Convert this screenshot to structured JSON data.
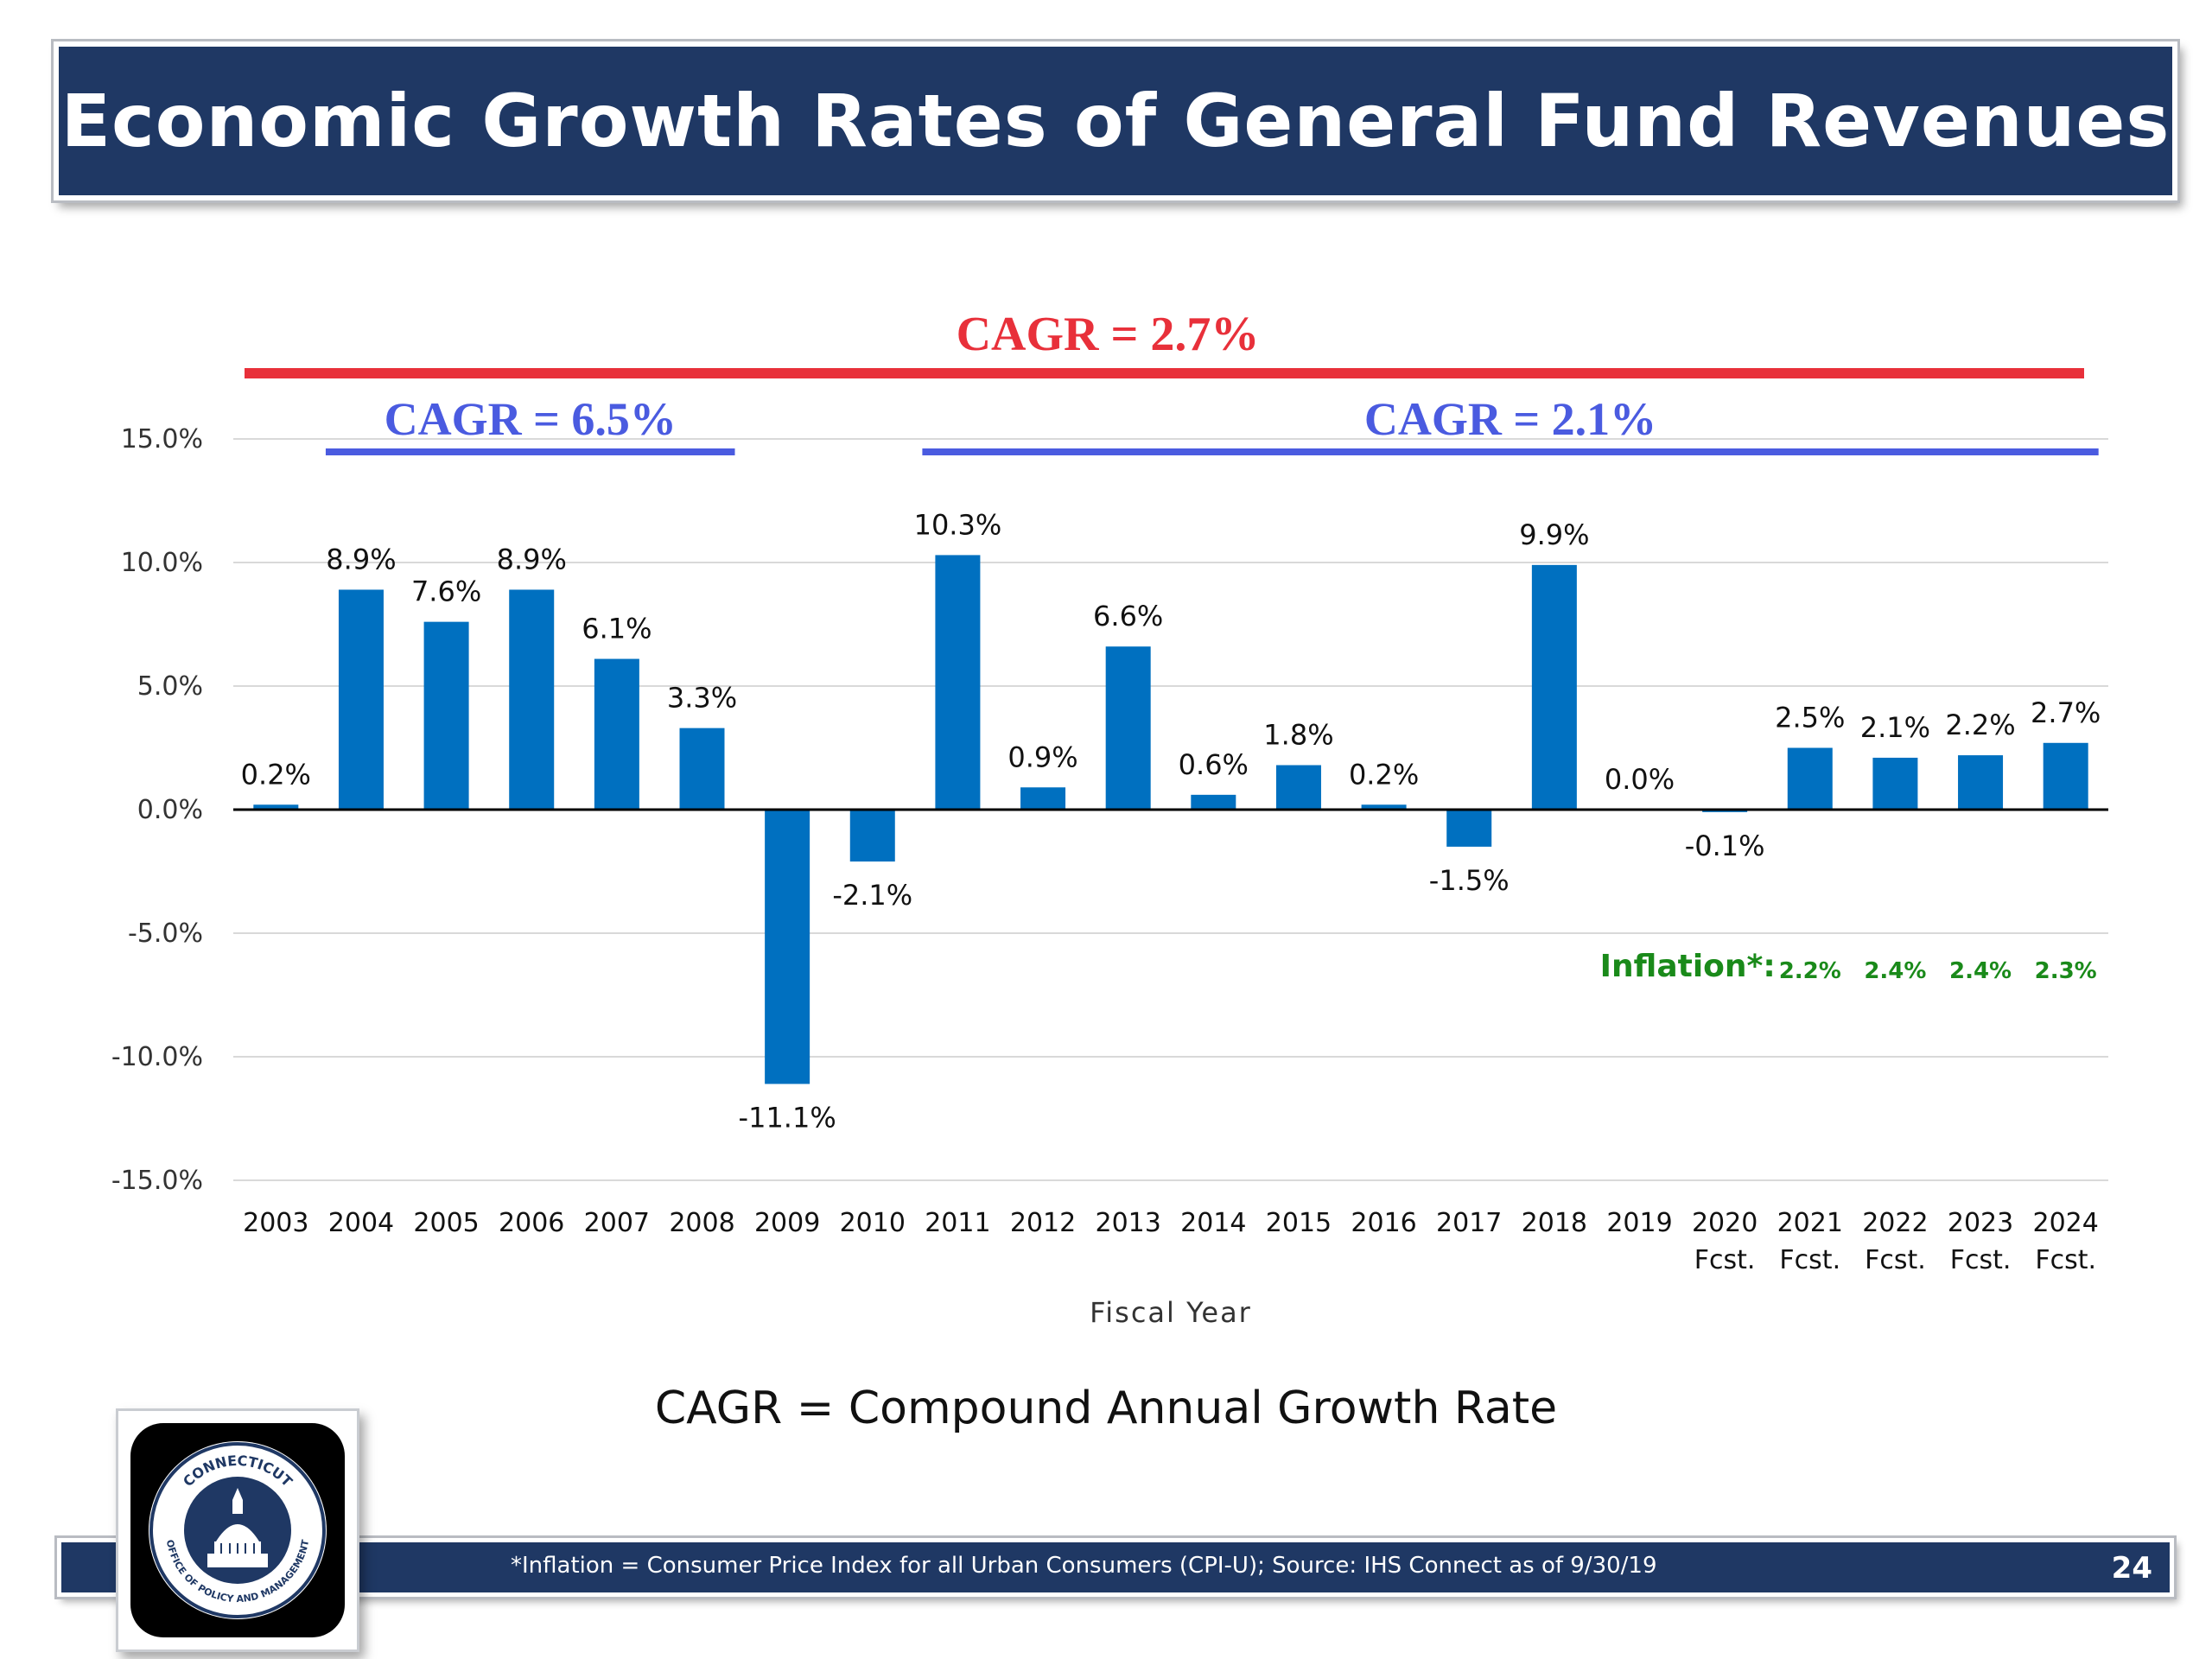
{
  "slide": {
    "title": "Economic Growth Rates of General Fund Revenues",
    "cagr_definition": "CAGR = Compound Annual Growth Rate",
    "footnote": "*Inflation = Consumer Price Index for all Urban Consumers (CPI-U); Source: IHS Connect as of 9/30/19",
    "page_number": "24",
    "logo": {
      "ring_top": "CONNECTICUT",
      "ring_bottom": "OFFICE OF POLICY AND MANAGEMENT"
    }
  },
  "colors": {
    "banner": "#1f3864",
    "bar": "#0070c0",
    "cagr_overall": "#e8303a",
    "cagr_period": "#4a5be0",
    "inflation": "#1a8a1a"
  },
  "chart_data": {
    "type": "bar",
    "categories": [
      "2003",
      "2004",
      "2005",
      "2006",
      "2007",
      "2008",
      "2009",
      "2010",
      "2011",
      "2012",
      "2013",
      "2014",
      "2015",
      "2016",
      "2017",
      "2018",
      "2019",
      "2020",
      "2021",
      "2022",
      "2023",
      "2024"
    ],
    "category_sublabels": [
      "",
      "",
      "",
      "",
      "",
      "",
      "",
      "",
      "",
      "",
      "",
      "",
      "",
      "",
      "",
      "",
      "",
      "Fcst.",
      "Fcst.",
      "Fcst.",
      "Fcst.",
      "Fcst."
    ],
    "values": [
      0.2,
      8.9,
      7.6,
      8.9,
      6.1,
      3.3,
      -11.1,
      -2.1,
      10.3,
      0.9,
      6.6,
      0.6,
      1.8,
      0.2,
      -1.5,
      9.9,
      0.0,
      -0.1,
      2.5,
      2.1,
      2.2,
      2.7
    ],
    "value_labels": [
      "0.2%",
      "8.9%",
      "7.6%",
      "8.9%",
      "6.1%",
      "3.3%",
      "-11.1%",
      "-2.1%",
      "10.3%",
      "0.9%",
      "6.6%",
      "0.6%",
      "1.8%",
      "0.2%",
      "-1.5%",
      "9.9%",
      "0.0%",
      "-0.1%",
      "2.5%",
      "2.1%",
      "2.2%",
      "2.7%"
    ],
    "xlabel": "Fiscal Year",
    "ylabel": "",
    "ylim": [
      -15,
      15
    ],
    "yticks": [
      15,
      10,
      5,
      0,
      -5,
      -10,
      -15
    ],
    "ytick_labels": [
      "15.0%",
      "10.0%",
      "5.0%",
      "0.0%",
      "-5.0%",
      "-10.0%",
      "-15.0%"
    ],
    "grid": true,
    "annotations": {
      "cagr_overall": {
        "text": "CAGR = 2.7%",
        "from": "2003",
        "to": "2024"
      },
      "cagr_periods": [
        {
          "text": "CAGR = 6.5%",
          "from": "2004",
          "to": "2008"
        },
        {
          "text": "CAGR = 2.1%",
          "from": "2011",
          "to": "2024"
        }
      ],
      "inflation": {
        "label": "Inflation*:",
        "years": [
          "2021",
          "2022",
          "2023",
          "2024"
        ],
        "values": [
          "2.2%",
          "2.4%",
          "2.4%",
          "2.3%"
        ]
      }
    }
  }
}
